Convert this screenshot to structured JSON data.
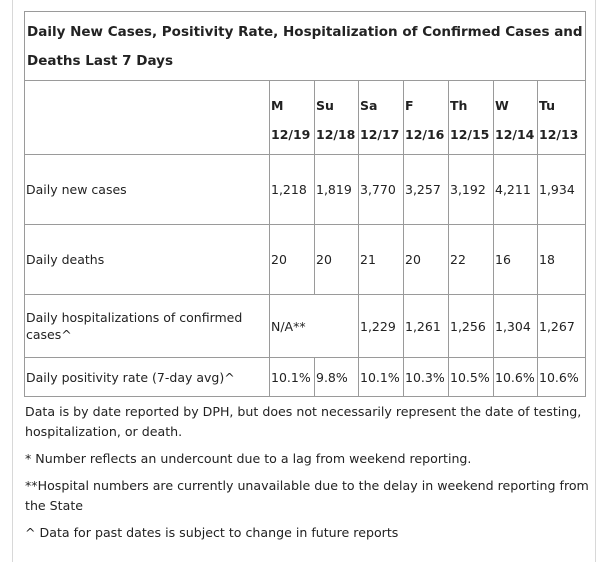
{
  "table": {
    "caption": "Daily New Cases, Positivity Rate, Hospitalization of Confirmed Cases and Deaths Last 7 Days",
    "columns": [
      {
        "day": "M",
        "date": "12/19"
      },
      {
        "day": "Su",
        "date": "12/18"
      },
      {
        "day": "Sa",
        "date": "12/17"
      },
      {
        "day": "F",
        "date": "12/16"
      },
      {
        "day": "Th",
        "date": "12/15"
      },
      {
        "day": "W",
        "date": "12/14"
      },
      {
        "day": "Tu",
        "date": "12/13"
      }
    ],
    "rows": {
      "new_cases": {
        "label": "Daily new cases",
        "values": [
          "1,218",
          "1,819",
          "3,770",
          "3,257",
          "3,192",
          "4,211",
          "1,934"
        ]
      },
      "deaths": {
        "label": "Daily deaths",
        "values": [
          "20",
          "20",
          "21",
          "20",
          "22",
          "16",
          "18"
        ]
      },
      "hospitalizations": {
        "label": "Daily hospitalizations of confirmed cases^",
        "merged_value": "N/A**",
        "values": [
          "1,229",
          "1,261",
          "1,256",
          "1,304",
          "1,267"
        ]
      },
      "positivity": {
        "label": "Daily positivity rate (7-day avg)^",
        "values": [
          "10.1%",
          "9.8%",
          "10.1%",
          "10.3%",
          "10.5%",
          "10.6%",
          "10.6%"
        ]
      }
    }
  },
  "notes": {
    "reporting": "Data is by date reported by DPH, but does not necessarily represent the date of testing, hospitalization, or death.",
    "undercount": "* Number reflects an undercount due to a lag from weekend reporting.",
    "hospital": "**Hospital numbers are currently unavailable due to the delay in weekend reporting from the State",
    "past_dates": "^ Data for past dates is subject to change in future reports"
  }
}
